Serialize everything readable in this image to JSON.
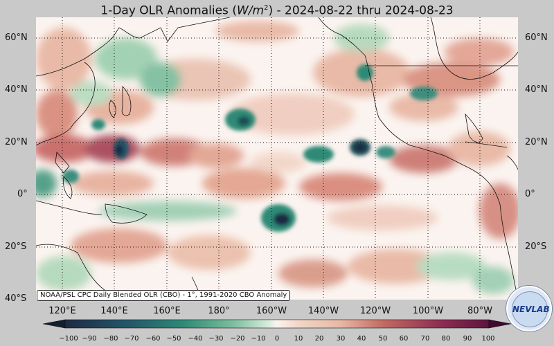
{
  "header": {
    "title_prefix": "1-Day OLR Anomalies (",
    "title_unit": "W/m",
    "title_unit_exp": "2",
    "title_suffix": ") - 2024-08-22 thru 2024-08-23"
  },
  "map": {
    "lat_labels": [
      "60°N",
      "40°N",
      "20°N",
      "0°",
      "20°S",
      "40°S"
    ],
    "lon_labels": [
      "120°E",
      "140°E",
      "160°E",
      "180°",
      "160°W",
      "140°W",
      "120°W",
      "100°W",
      "80°W"
    ],
    "source_note": "NOAA/PSL CPC Daily Blended OLR (CBO) - 1°, 1991-2020 CBO Anomaly",
    "logo_text": "NEVLAB"
  },
  "colorbar": {
    "ticks": [
      "−100",
      "−90",
      "−80",
      "−70",
      "−60",
      "−50",
      "−40",
      "−30",
      "−20",
      "−10",
      "0",
      "10",
      "20",
      "30",
      "40",
      "50",
      "60",
      "70",
      "80",
      "90",
      "100"
    ],
    "colors": {
      "strong_negative": "#1e2a44",
      "negative": "#2e8a76",
      "weak_negative": "#b3d9bc",
      "neutral": "#fbf3ef",
      "weak_positive": "#e8b8a4",
      "positive": "#c46a62",
      "strong_positive": "#5d1440"
    }
  }
}
